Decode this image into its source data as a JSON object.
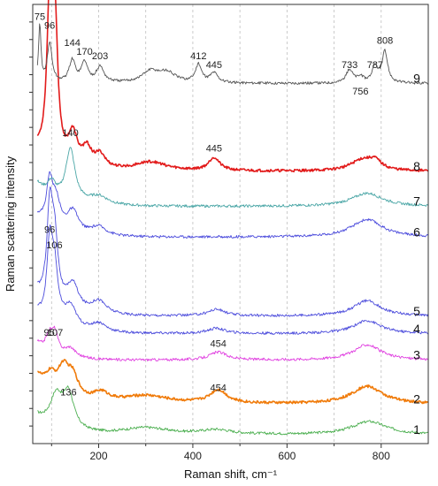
{
  "chart_data": {
    "type": "line",
    "title": "",
    "xlabel": "Raman shift, cm⁻¹",
    "ylabel": "Raman scattering intensity",
    "xlim": [
      60,
      900
    ],
    "x_ticks": [
      200,
      400,
      600,
      800
    ],
    "x_tick_labels": [
      "200",
      "400",
      "600",
      "800"
    ],
    "grid": "vertical dashed lines every 100 cm-1",
    "y_ticks_labeled": false,
    "series": [
      {
        "label": "1",
        "color": "#4caf50",
        "baseline": 0.02,
        "peaks": [
          [
            110,
            0.07,
            16
          ],
          [
            136,
            0.08,
            14
          ],
          [
            300,
            0.015,
            60
          ],
          [
            450,
            0.01,
            40
          ],
          [
            775,
            0.03,
            45
          ]
        ],
        "tail": 0.03
      },
      {
        "label": "2",
        "color": "#f07b0a",
        "baseline": 0.09,
        "peaks": [
          [
            98,
            0.03,
            12
          ],
          [
            125,
            0.06,
            15
          ],
          [
            145,
            0.045,
            14
          ],
          [
            205,
            0.02,
            20
          ],
          [
            300,
            0.018,
            60
          ],
          [
            454,
            0.03,
            22
          ],
          [
            770,
            0.04,
            40
          ]
        ],
        "tail": 0.05
      },
      {
        "label": "3",
        "color": "#e040e0",
        "baseline": 0.19,
        "peaks": [
          [
            95,
            0.035,
            8
          ],
          [
            107,
            0.045,
            8
          ],
          [
            140,
            0.02,
            14
          ],
          [
            454,
            0.018,
            22
          ],
          [
            770,
            0.035,
            35
          ]
        ],
        "tail": 0.03
      },
      {
        "label": "4",
        "color": "#4c4cdc",
        "baseline": 0.25,
        "peaks": [
          [
            96,
            0.16,
            7
          ],
          [
            106,
            0.12,
            9
          ],
          [
            140,
            0.05,
            16
          ],
          [
            200,
            0.02,
            20
          ],
          [
            450,
            0.012,
            22
          ],
          [
            770,
            0.03,
            35
          ]
        ],
        "tail": 0.035
      },
      {
        "label": "5",
        "color": "#4c4cdc",
        "baseline": 0.29,
        "peaks": [
          [
            96,
            0.19,
            7
          ],
          [
            106,
            0.15,
            9
          ],
          [
            145,
            0.06,
            15
          ],
          [
            200,
            0.03,
            20
          ],
          [
            450,
            0.015,
            22
          ],
          [
            770,
            0.035,
            35
          ]
        ],
        "tail": 0.04
      },
      {
        "label": "6",
        "color": "#4c4cdc",
        "baseline": 0.47,
        "peaks": [
          [
            96,
            0.1,
            8
          ],
          [
            110,
            0.06,
            10
          ],
          [
            145,
            0.05,
            15
          ],
          [
            200,
            0.02,
            20
          ],
          [
            770,
            0.04,
            40
          ]
        ],
        "tail": 0.035
      },
      {
        "label": "7",
        "color": "#4aa6a6",
        "baseline": 0.54,
        "peaks": [
          [
            100,
            0.03,
            10
          ],
          [
            140,
            0.12,
            12
          ],
          [
            200,
            0.02,
            25
          ],
          [
            770,
            0.03,
            40
          ]
        ],
        "tail": 0.04
      },
      {
        "label": "8",
        "color": "#e21b1b",
        "baseline": 0.62,
        "peaks": [
          [
            96,
            0.34,
            7
          ],
          [
            107,
            0.3,
            7
          ],
          [
            145,
            0.07,
            12
          ],
          [
            175,
            0.04,
            12
          ],
          [
            203,
            0.03,
            14
          ],
          [
            310,
            0.02,
            40
          ],
          [
            445,
            0.03,
            14
          ],
          [
            760,
            0.025,
            30
          ],
          [
            787,
            0.018,
            16
          ]
        ],
        "tail": 0.035
      },
      {
        "label": "9",
        "color": "#555555",
        "baseline": 0.82,
        "peaks": [
          [
            75,
            0.13,
            3
          ],
          [
            96,
            0.09,
            6
          ],
          [
            144,
            0.05,
            8
          ],
          [
            170,
            0.045,
            8
          ],
          [
            203,
            0.035,
            10
          ],
          [
            310,
            0.025,
            22
          ],
          [
            345,
            0.022,
            22
          ],
          [
            412,
            0.04,
            8
          ],
          [
            445,
            0.022,
            10
          ],
          [
            733,
            0.03,
            9
          ],
          [
            756,
            0.012,
            8
          ],
          [
            787,
            0.035,
            8
          ],
          [
            808,
            0.07,
            7
          ]
        ],
        "tail": 0.0
      }
    ],
    "peak_labels": [
      {
        "text": "75",
        "x": 75,
        "y": 0.965
      },
      {
        "text": "96",
        "x": 96,
        "y": 0.945
      },
      {
        "text": "144",
        "x": 144,
        "y": 0.905
      },
      {
        "text": "170",
        "x": 170,
        "y": 0.885
      },
      {
        "text": "203",
        "x": 203,
        "y": 0.875
      },
      {
        "text": "412",
        "x": 412,
        "y": 0.875
      },
      {
        "text": "445",
        "x": 445,
        "y": 0.855
      },
      {
        "text": "733",
        "x": 733,
        "y": 0.855
      },
      {
        "text": "756",
        "x": 756,
        "y": 0.795
      },
      {
        "text": "787",
        "x": 787,
        "y": 0.855
      },
      {
        "text": "808",
        "x": 808,
        "y": 0.91
      },
      {
        "text": "140",
        "x": 140,
        "y": 0.7
      },
      {
        "text": "445",
        "x": 445,
        "y": 0.665
      },
      {
        "text": "96",
        "x": 96,
        "y": 0.48
      },
      {
        "text": "106",
        "x": 106,
        "y": 0.445
      },
      {
        "text": "95",
        "x": 95,
        "y": 0.245
      },
      {
        "text": "107",
        "x": 107,
        "y": 0.245
      },
      {
        "text": "454",
        "x": 454,
        "y": 0.22
      },
      {
        "text": "454",
        "x": 454,
        "y": 0.12
      },
      {
        "text": "136",
        "x": 136,
        "y": 0.11
      }
    ]
  }
}
